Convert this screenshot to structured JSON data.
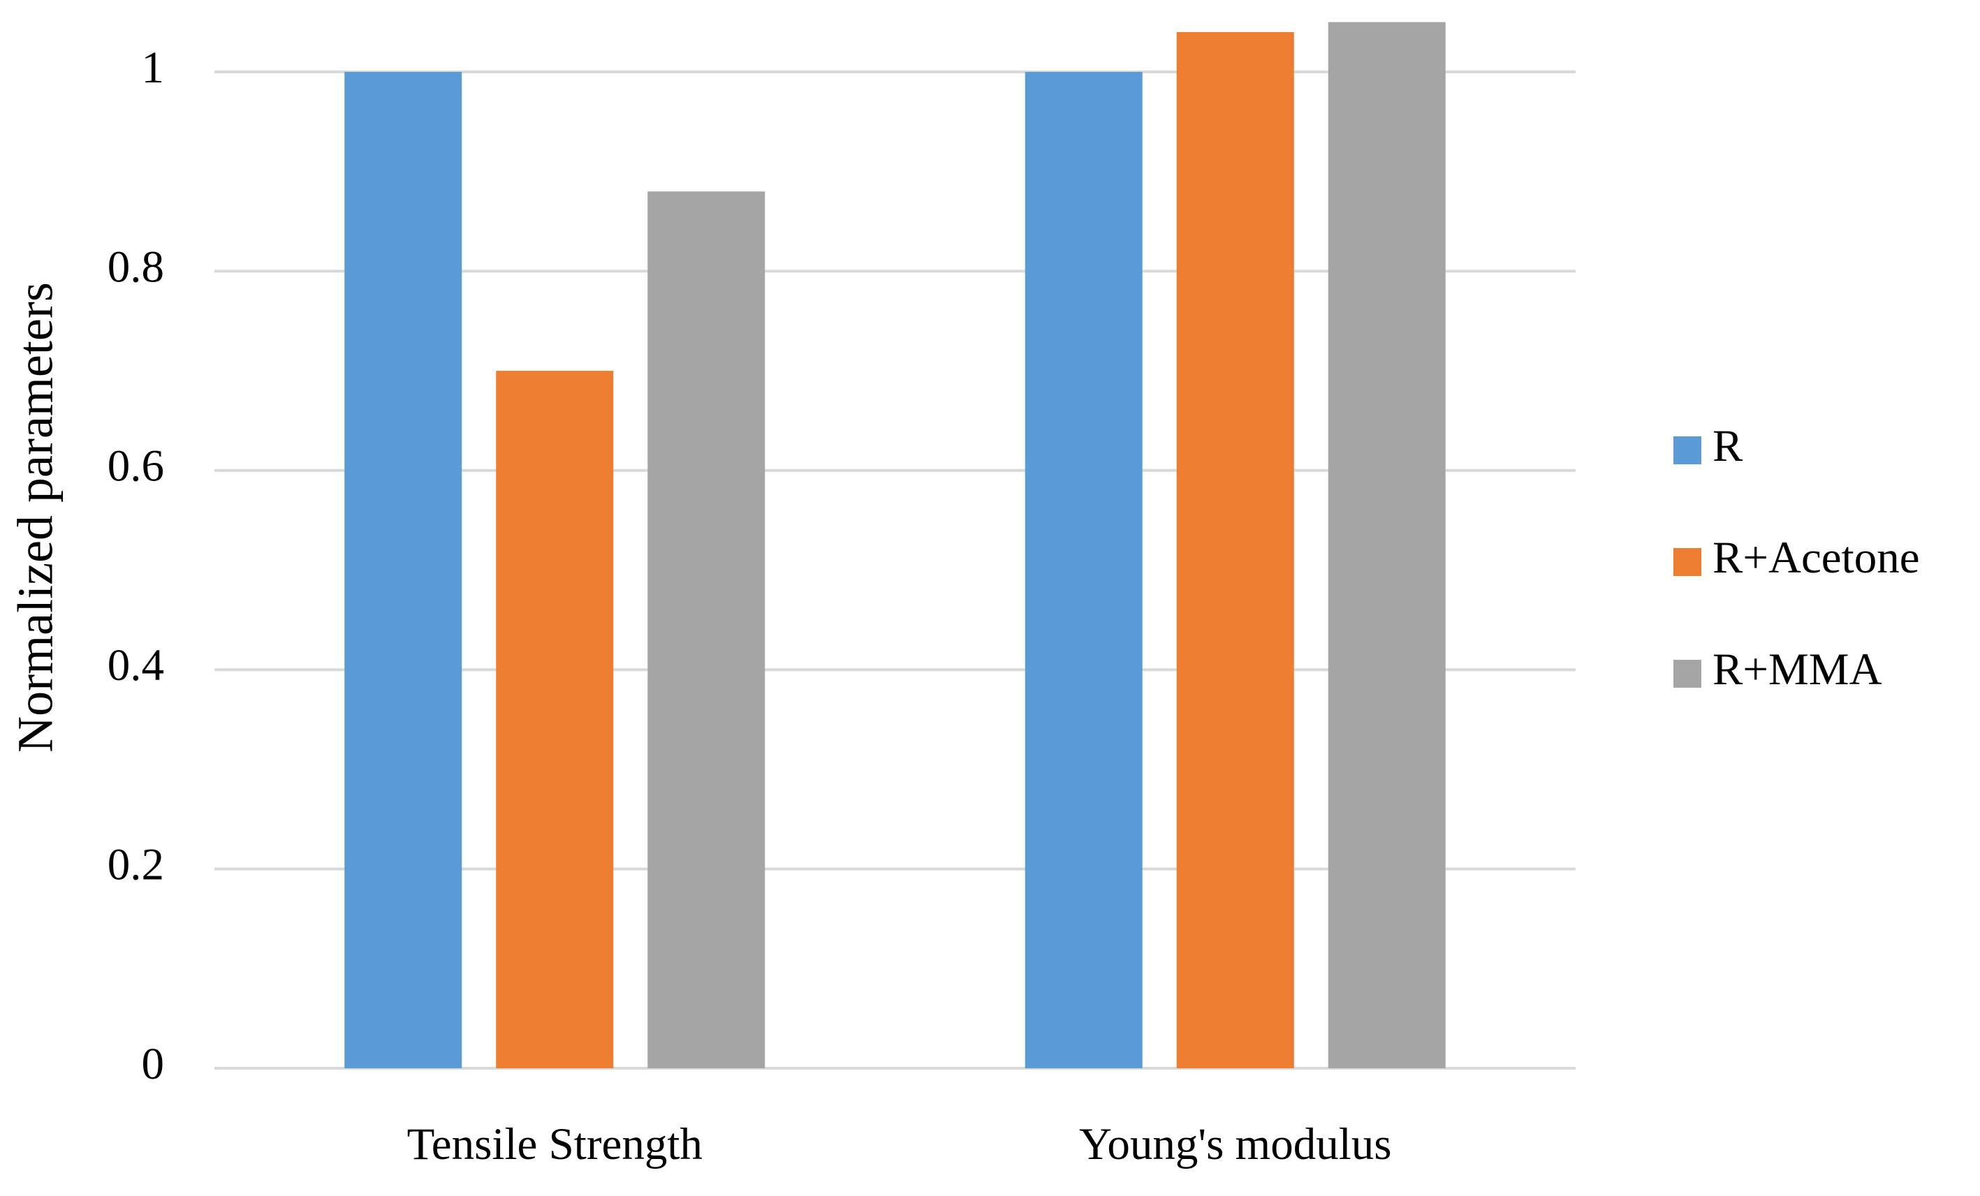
{
  "chart_data": {
    "type": "bar",
    "categories": [
      "Tensile Strength",
      "Young's modulus"
    ],
    "series": [
      {
        "name": "R",
        "color": "#5b9bd5",
        "values": [
          1,
          1
        ]
      },
      {
        "name": "R+Acetone",
        "color": "#ed7d31",
        "values": [
          0.7,
          1.04
        ]
      },
      {
        "name": "R+MMA",
        "color": "#a5a5a5",
        "values": [
          0.88,
          1.05
        ]
      }
    ],
    "y_label": "Normalized parameters",
    "ylim": [
      0,
      1.06
    ],
    "yticks": [
      0,
      0.2,
      0.4,
      0.6,
      0.8,
      1
    ],
    "grid": true,
    "legend": "right"
  }
}
